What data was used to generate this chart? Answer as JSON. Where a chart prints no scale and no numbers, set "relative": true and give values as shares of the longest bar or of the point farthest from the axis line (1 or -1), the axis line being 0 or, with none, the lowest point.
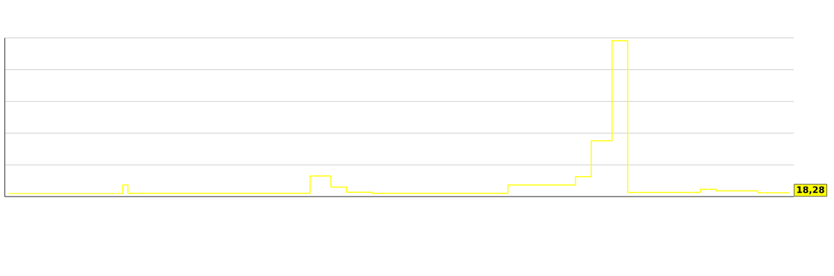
{
  "chart_data": {
    "type": "step",
    "relative": true,
    "categories": [
      null,
      null,
      null,
      null,
      null,
      null,
      null,
      null,
      null,
      null,
      null,
      null,
      null,
      null,
      null,
      null,
      null,
      null,
      null,
      null,
      null,
      null,
      null,
      null,
      null,
      null,
      null,
      null,
      null,
      null,
      null,
      null,
      null,
      null,
      null,
      null,
      null,
      null,
      null,
      null,
      null,
      null,
      null,
      null,
      null,
      null,
      null,
      null,
      null,
      null,
      null,
      null,
      null,
      null,
      null,
      null,
      null,
      null,
      null,
      null,
      null,
      null,
      null,
      null,
      null,
      null,
      null,
      null,
      null,
      null,
      null,
      null,
      null,
      null,
      null,
      null,
      null,
      null,
      null,
      null,
      null,
      null,
      null,
      null,
      null,
      null,
      null,
      null,
      null,
      null,
      null,
      null,
      null,
      null,
      null,
      null,
      null,
      null,
      null,
      null,
      null,
      null,
      null,
      null,
      null,
      null,
      null,
      null,
      null,
      null,
      null,
      null,
      null,
      null,
      null,
      null,
      null,
      null,
      null,
      null,
      null,
      null,
      null,
      null,
      null,
      null,
      null,
      null,
      null,
      null,
      null,
      null,
      null,
      null,
      null,
      null,
      null,
      null,
      null,
      null,
      null,
      null,
      null,
      null,
      null,
      null,
      null,
      null,
      null,
      null,
      null
    ],
    "values": [
      0.02,
      0.02,
      0.02,
      0.02,
      0.02,
      0.02,
      0.02,
      0.02,
      0.02,
      0.02,
      0.02,
      0.02,
      0.02,
      0.02,
      0.02,
      0.02,
      0.02,
      0.02,
      0.02,
      0.02,
      0.02,
      0.02,
      0.075,
      0.022,
      0.022,
      0.022,
      0.022,
      0.022,
      0.022,
      0.022,
      0.022,
      0.022,
      0.022,
      0.022,
      0.022,
      0.022,
      0.022,
      0.022,
      0.022,
      0.022,
      0.022,
      0.022,
      0.022,
      0.022,
      0.022,
      0.022,
      0.022,
      0.022,
      0.022,
      0.022,
      0.022,
      0.022,
      0.022,
      0.022,
      0.022,
      0.022,
      0.022,
      0.022,
      0.133,
      0.133,
      0.133,
      0.133,
      0.062,
      0.062,
      0.062,
      0.028,
      0.028,
      0.028,
      0.028,
      0.028,
      0.022,
      0.022,
      0.022,
      0.022,
      0.022,
      0.022,
      0.022,
      0.022,
      0.022,
      0.022,
      0.022,
      0.022,
      0.022,
      0.022,
      0.022,
      0.022,
      0.022,
      0.022,
      0.022,
      0.022,
      0.022,
      0.022,
      0.022,
      0.022,
      0.022,
      0.022,
      0.075,
      0.075,
      0.075,
      0.075,
      0.075,
      0.075,
      0.075,
      0.075,
      0.075,
      0.075,
      0.075,
      0.075,
      0.075,
      0.128,
      0.128,
      0.128,
      0.358,
      0.358,
      0.358,
      0.358,
      1,
      1,
      1,
      0.027,
      0.027,
      0.027,
      0.027,
      0.027,
      0.027,
      0.027,
      0.027,
      0.027,
      0.027,
      0.027,
      0.027,
      0.027,
      0.027,
      0.047,
      0.047,
      0.047,
      0.037,
      0.037,
      0.037,
      0.037,
      0.037,
      0.037,
      0.037,
      0.037,
      0.025,
      0.025,
      0.025,
      0.025,
      0.025,
      0.025,
      0.025
    ],
    "color": "#ffff00",
    "grid": "y",
    "annotations": [
      "18,28"
    ]
  }
}
